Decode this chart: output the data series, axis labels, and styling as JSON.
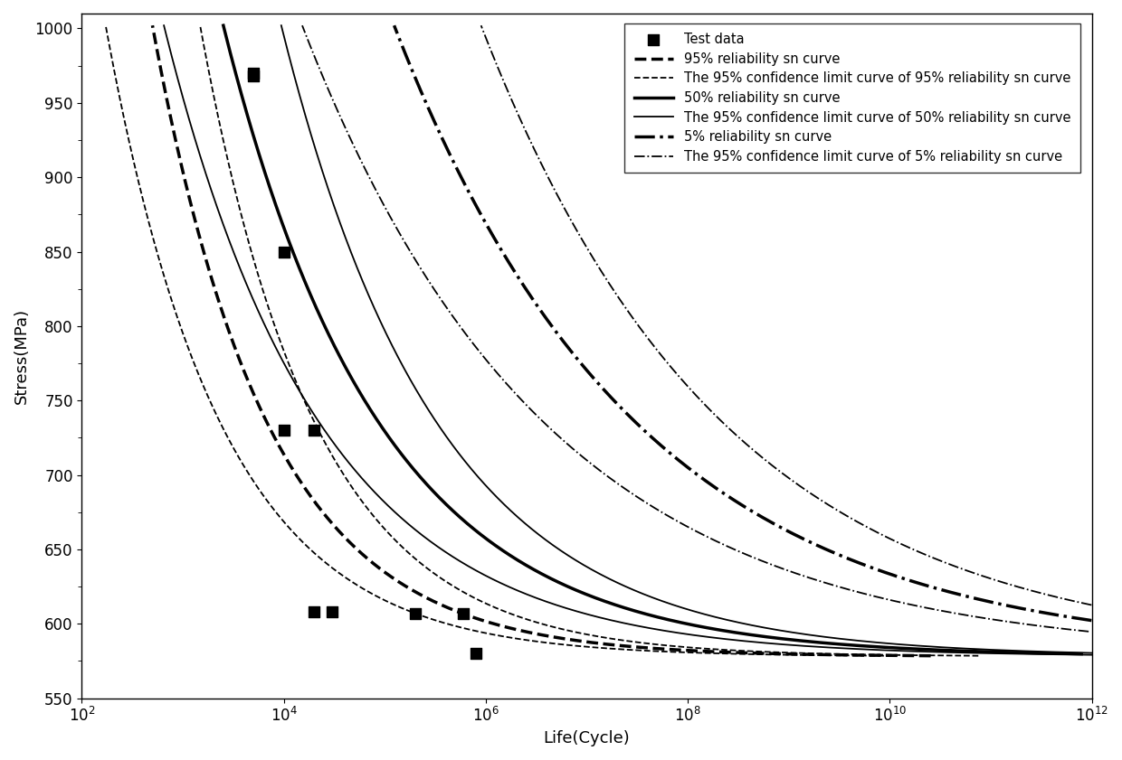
{
  "xlabel": "Life(Cycle)",
  "ylabel": "Stress(MPa)",
  "ylim": [
    550,
    1010
  ],
  "xlim": [
    100.0,
    1000000000000.0
  ],
  "yticks": [
    550,
    600,
    650,
    700,
    750,
    800,
    850,
    900,
    950,
    1000
  ],
  "xticks": [
    100.0,
    10000.0,
    1000000.0,
    100000000.0,
    10000000000.0,
    1000000000000.0
  ],
  "test_data": {
    "x": [
      5000,
      5000,
      10000,
      10000,
      20000,
      20000,
      30000,
      200000,
      600000,
      800000
    ],
    "y": [
      968,
      970,
      850,
      730,
      730,
      608,
      608,
      607,
      607,
      580
    ]
  },
  "fatigue_limit": 578,
  "curves": [
    {
      "key": "rel95_conf_upper",
      "C": 6800,
      "m": 0.38,
      "ls": "--",
      "lw": 1.3,
      "label": "_nolegend_"
    },
    {
      "key": "rel95_main",
      "C": 4500,
      "m": 0.38,
      "ls": "--",
      "lw": 2.5,
      "label": "95% reliability sn curve"
    },
    {
      "key": "rel95_conf_lower",
      "C": 3000,
      "m": 0.38,
      "ls": "--",
      "lw": 1.3,
      "label": "The 95% confidence limit curve of 95% reliability sn curve"
    },
    {
      "key": "rel50_conf_upper",
      "C": 5500,
      "m": 0.28,
      "ls": "-",
      "lw": 1.3,
      "label": "_nolegend_"
    },
    {
      "key": "rel50_main",
      "C": 3800,
      "m": 0.28,
      "ls": "-",
      "lw": 2.5,
      "label": "50% reliability sn curve"
    },
    {
      "key": "rel50_conf_lower",
      "C": 2600,
      "m": 0.28,
      "ls": "-",
      "lw": 1.3,
      "label": "The 95% confidence limit curve of 50% reliability sn curve"
    },
    {
      "key": "rel5_conf_upper",
      "C": 5000,
      "m": 0.18,
      "ls": "-.",
      "lw": 1.3,
      "label": "_nolegend_"
    },
    {
      "key": "rel5_main",
      "C": 3500,
      "m": 0.18,
      "ls": "-.",
      "lw": 2.5,
      "label": "5% reliability sn curve"
    },
    {
      "key": "rel5_conf_lower",
      "C": 2400,
      "m": 0.18,
      "ls": "-.",
      "lw": 1.3,
      "label": "The 95% confidence limit curve of 5% reliability sn curve"
    }
  ],
  "background_color": "#ffffff"
}
